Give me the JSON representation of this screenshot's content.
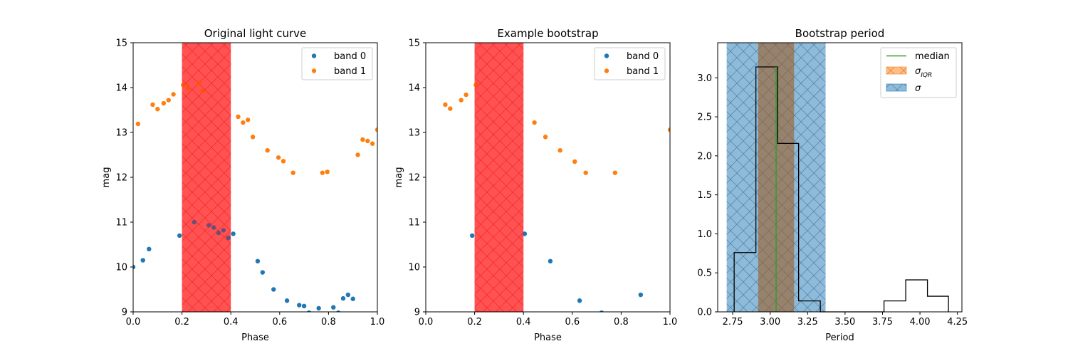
{
  "colors": {
    "band0": "#1f77b4",
    "band1": "#ff7f0e",
    "mask_fill": "#ff0000",
    "hist_line": "#000000",
    "median": "#2ca02c",
    "iqr": "#ff7f0e",
    "sigma": "#1f77b4"
  },
  "chart_data": [
    {
      "type": "scatter",
      "title": "Original light curve",
      "xlabel": "Phase",
      "ylabel": "mag",
      "xlim": [
        0.0,
        1.0
      ],
      "ylim": [
        9,
        15
      ],
      "xticks": [
        "0.0",
        "0.2",
        "0.4",
        "0.6",
        "0.8",
        "1.0"
      ],
      "yticks": [
        "9",
        "10",
        "11",
        "12",
        "13",
        "14",
        "15"
      ],
      "legend_position": "top-right",
      "masked_phase_range": [
        0.2,
        0.4
      ],
      "series": [
        {
          "name": "band 0",
          "color_key": "band0",
          "x": [
            0.0,
            0.04,
            0.065,
            0.19,
            0.25,
            0.31,
            0.33,
            0.35,
            0.37,
            0.39,
            0.41,
            0.51,
            0.53,
            0.575,
            0.63,
            0.68,
            0.7,
            0.72,
            0.76,
            0.82,
            0.84,
            0.86,
            0.88,
            0.9
          ],
          "y": [
            10.0,
            10.15,
            10.4,
            10.7,
            11.0,
            10.93,
            10.88,
            10.76,
            10.82,
            10.65,
            10.74,
            10.13,
            9.88,
            9.5,
            9.25,
            9.15,
            9.13,
            8.98,
            9.08,
            9.1,
            8.98,
            9.3,
            9.38,
            9.29
          ]
        },
        {
          "name": "band 1",
          "color_key": "band1",
          "x": [
            0.02,
            0.08,
            0.1,
            0.125,
            0.145,
            0.165,
            0.205,
            0.225,
            0.27,
            0.285,
            0.43,
            0.45,
            0.47,
            0.49,
            0.55,
            0.595,
            0.615,
            0.655,
            0.775,
            0.795,
            0.92,
            0.94,
            0.96,
            0.98,
            1.0
          ],
          "y": [
            13.19,
            13.62,
            13.52,
            13.65,
            13.72,
            13.85,
            14.06,
            13.99,
            14.1,
            13.92,
            13.35,
            13.22,
            13.28,
            12.9,
            12.6,
            12.44,
            12.36,
            12.1,
            12.1,
            12.12,
            12.5,
            12.84,
            12.81,
            12.75,
            13.06
          ]
        }
      ]
    },
    {
      "type": "scatter",
      "title": "Example bootstrap",
      "xlabel": "Phase",
      "ylabel": "mag",
      "xlim": [
        0.0,
        1.0
      ],
      "ylim": [
        9,
        15
      ],
      "xticks": [
        "0.0",
        "0.2",
        "0.4",
        "0.6",
        "0.8",
        "1.0"
      ],
      "yticks": [
        "9",
        "10",
        "11",
        "12",
        "13",
        "14",
        "15"
      ],
      "legend_position": "top-right",
      "masked_phase_range": [
        0.2,
        0.4
      ],
      "series": [
        {
          "name": "band 0",
          "color_key": "band0",
          "x": [
            0.19,
            0.405,
            0.51,
            0.63,
            0.72,
            0.88
          ],
          "y": [
            10.7,
            10.74,
            10.13,
            9.25,
            8.98,
            9.38
          ]
        },
        {
          "name": "band 1",
          "color_key": "band1",
          "x": [
            0.08,
            0.1,
            0.145,
            0.165,
            0.205,
            0.445,
            0.49,
            0.55,
            0.61,
            0.655,
            0.775,
            1.0
          ],
          "y": [
            13.62,
            13.53,
            13.72,
            13.84,
            14.06,
            13.22,
            12.9,
            12.6,
            12.35,
            12.1,
            12.1,
            13.06
          ]
        }
      ]
    },
    {
      "type": "histogram",
      "title": "Bootstrap period",
      "xlabel": "Period",
      "ylabel": "",
      "xlim": [
        2.65,
        4.28
      ],
      "ylim": [
        0,
        3.45
      ],
      "xticks": [
        "2.75",
        "3.00",
        "3.25",
        "3.50",
        "3.75",
        "4.00",
        "4.25"
      ],
      "yticks": [
        "0.0",
        "0.5",
        "1.0",
        "1.5",
        "2.0",
        "2.5",
        "3.0"
      ],
      "legend_position": "top-right",
      "bin_edges": [
        2.76,
        2.905,
        3.05,
        3.19,
        3.335,
        3.475,
        3.62,
        3.76,
        3.905,
        4.05,
        4.19
      ],
      "densities": [
        0.76,
        3.14,
        2.16,
        0.14,
        0.0,
        0.0,
        0.0,
        0.14,
        0.41,
        0.2
      ],
      "median": 3.04,
      "sigma_iqr_range": [
        2.92,
        3.16
      ],
      "sigma_range": [
        2.71,
        3.37
      ],
      "legend": [
        {
          "label": "median",
          "kind": "line",
          "color_key": "median"
        },
        {
          "label": "σ",
          "sub": "IQR",
          "kind": "patch",
          "color_key": "iqr"
        },
        {
          "label": "σ",
          "sub": "",
          "kind": "patch",
          "color_key": "sigma"
        }
      ]
    }
  ]
}
